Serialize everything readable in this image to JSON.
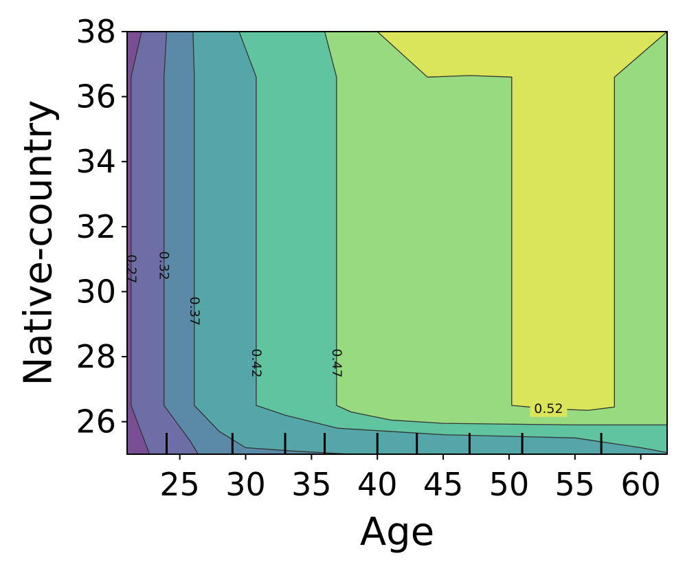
{
  "chart_data": {
    "type": "contour",
    "title": "",
    "xlabel": "Age",
    "ylabel": "Native-country",
    "xlim": [
      21,
      62
    ],
    "ylim": [
      25,
      38
    ],
    "x_ticks": [
      25,
      30,
      35,
      40,
      45,
      50,
      55,
      60
    ],
    "y_ticks": [
      26,
      28,
      30,
      32,
      34,
      36,
      38
    ],
    "rug_x": [
      24,
      29,
      33,
      36,
      40,
      43,
      47,
      51,
      57
    ],
    "colormap": "viridis",
    "grid": false,
    "levels": [
      {
        "value": 0.22,
        "color": "#7a4e95"
      },
      {
        "value": 0.27,
        "color": "#6d6ea6"
      },
      {
        "value": 0.32,
        "color": "#5b8aa9"
      },
      {
        "value": 0.37,
        "color": "#54a6a8"
      },
      {
        "value": 0.42,
        "color": "#5fc49f"
      },
      {
        "value": 0.47,
        "color": "#97da7f"
      },
      {
        "value": 0.52,
        "color": "#dbe55a"
      }
    ],
    "contour_lines": [
      {
        "label": "0.27",
        "points": [
          [
            22.1,
            38
          ],
          [
            21.3,
            36.6
          ],
          [
            21.3,
            26.5
          ],
          [
            22.7,
            25
          ]
        ]
      },
      {
        "label": "0.32",
        "points": [
          [
            24.0,
            38
          ],
          [
            23.8,
            36.6
          ],
          [
            23.8,
            26.5
          ],
          [
            25.8,
            25.4
          ],
          [
            26.4,
            25
          ]
        ]
      },
      {
        "label": "0.37",
        "points": [
          [
            26.0,
            38
          ],
          [
            26.1,
            36.6
          ],
          [
            26.1,
            26.5
          ],
          [
            28.0,
            25.7
          ],
          [
            30.0,
            25.2
          ],
          [
            33.5,
            25.1
          ],
          [
            38.0,
            25
          ]
        ]
      },
      {
        "label": "0.42",
        "points": [
          [
            29.5,
            38
          ],
          [
            30.8,
            36.6
          ],
          [
            30.8,
            26.5
          ],
          [
            33.0,
            26.2
          ],
          [
            37.0,
            25.8
          ],
          [
            45.0,
            25.6
          ],
          [
            50.0,
            25.55
          ],
          [
            55.0,
            25.5
          ],
          [
            60.0,
            25.2
          ],
          [
            62,
            25.05
          ]
        ]
      },
      {
        "label": "0.47",
        "points": [
          [
            36.0,
            38
          ],
          [
            36.9,
            36.6
          ],
          [
            36.9,
            26.5
          ],
          [
            38.0,
            26.3
          ],
          [
            41.0,
            26.05
          ],
          [
            45.0,
            25.95
          ],
          [
            55.0,
            25.9
          ],
          [
            62,
            25.9
          ]
        ]
      },
      {
        "label": "0.52",
        "points": [
          [
            40.0,
            38
          ],
          [
            43.8,
            36.6
          ],
          [
            47.0,
            36.65
          ],
          [
            50.2,
            36.6
          ],
          [
            50.2,
            26.5
          ],
          [
            53.0,
            26.4
          ],
          [
            56.0,
            26.35
          ],
          [
            58.0,
            26.45
          ],
          [
            58.0,
            36.6
          ],
          [
            62,
            38
          ]
        ]
      }
    ],
    "contour_labels": [
      {
        "text": "0.27",
        "x": 21.3,
        "y": 30.7
      },
      {
        "text": "0.32",
        "x": 23.8,
        "y": 30.8
      },
      {
        "text": "0.37",
        "x": 26.1,
        "y": 29.4
      },
      {
        "text": "0.42",
        "x": 30.8,
        "y": 27.8
      },
      {
        "text": "0.47",
        "x": 36.9,
        "y": 27.8
      },
      {
        "text": "0.52",
        "x": 53.0,
        "y": 26.4
      }
    ]
  }
}
